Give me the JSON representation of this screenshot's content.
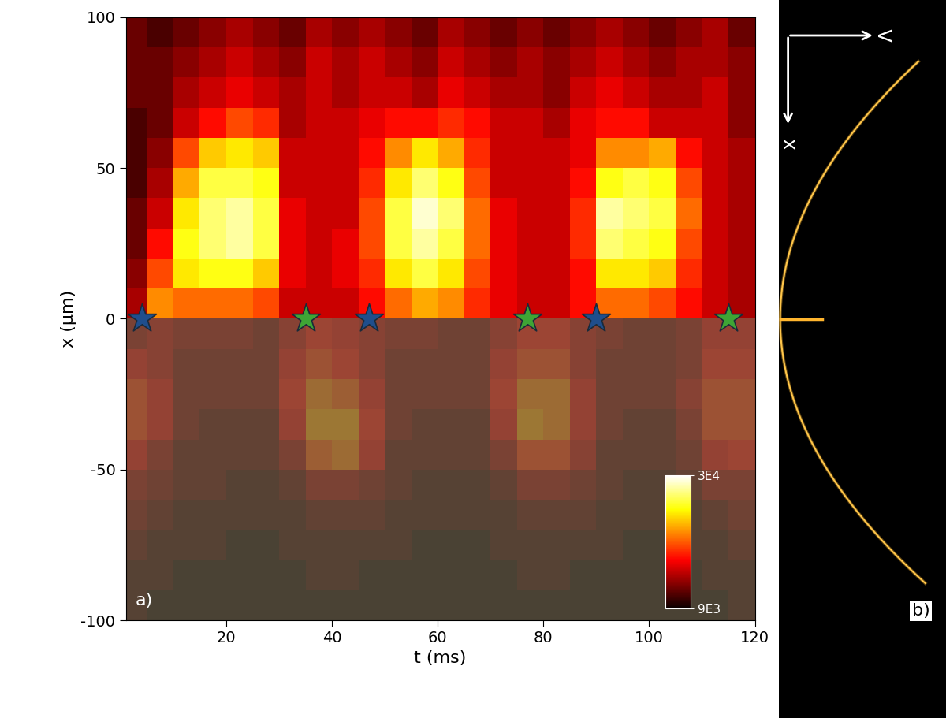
{
  "chart_data": {
    "type": "heatmap",
    "panel_label": "a)",
    "x_label": "t (ms)",
    "y_label": "x (µm)",
    "xlim": [
      1,
      120
    ],
    "ylim": [
      -100,
      100
    ],
    "xticks": [
      20,
      40,
      60,
      80,
      100,
      120
    ],
    "yticks": [
      -100,
      -50,
      0,
      50,
      100
    ],
    "t_edges": [
      0,
      5,
      10,
      15,
      20,
      25,
      30,
      35,
      40,
      45,
      50,
      55,
      60,
      65,
      70,
      75,
      80,
      85,
      90,
      95,
      100,
      105,
      110,
      115,
      120
    ],
    "x_edges": [
      -100,
      -90,
      -80,
      -70,
      -60,
      -50,
      -40,
      -30,
      -20,
      -10,
      0,
      10,
      20,
      30,
      40,
      50,
      60,
      70,
      80,
      90,
      100
    ],
    "cells": [
      [
        11000,
        10000,
        10000,
        10000,
        10000,
        10000,
        10000,
        10000,
        10000,
        10000,
        10000,
        10000,
        10000,
        10000,
        10000,
        10000,
        10000,
        10000,
        10000,
        10000,
        10000,
        10000,
        10000,
        11000
      ],
      [
        11000,
        11000,
        10000,
        10000,
        10000,
        10000,
        10000,
        11000,
        11000,
        10000,
        10000,
        10000,
        10000,
        10000,
        10000,
        11000,
        11000,
        10000,
        10000,
        10000,
        10000,
        10000,
        11000,
        11000
      ],
      [
        12000,
        11000,
        11000,
        11000,
        10000,
        10000,
        11000,
        11000,
        11000,
        11000,
        11000,
        10000,
        10000,
        10000,
        11000,
        11000,
        11000,
        11000,
        11000,
        10000,
        10000,
        11000,
        11000,
        12000
      ],
      [
        13000,
        12000,
        11000,
        11000,
        11000,
        11000,
        11000,
        12000,
        12000,
        12000,
        11000,
        11000,
        11000,
        11000,
        11000,
        12000,
        12000,
        12000,
        11000,
        11000,
        11000,
        11000,
        12000,
        13000
      ],
      [
        14000,
        13000,
        12000,
        12000,
        11000,
        11000,
        12000,
        14000,
        14000,
        13000,
        12000,
        11000,
        11000,
        11000,
        12000,
        14000,
        14000,
        13000,
        12000,
        11000,
        11000,
        12000,
        14000,
        14000
      ],
      [
        16000,
        14000,
        12000,
        12000,
        12000,
        12000,
        14000,
        19000,
        20000,
        16000,
        12000,
        12000,
        12000,
        12000,
        14000,
        18000,
        18000,
        15000,
        12000,
        12000,
        12000,
        13000,
        16000,
        17000
      ],
      [
        18000,
        16000,
        13000,
        12000,
        12000,
        12000,
        16000,
        21000,
        21000,
        17000,
        13000,
        12000,
        12000,
        12000,
        16000,
        21000,
        20000,
        16000,
        13000,
        12000,
        12000,
        14000,
        18000,
        18000
      ],
      [
        18000,
        16000,
        13000,
        13000,
        13000,
        13000,
        17000,
        20000,
        19000,
        16000,
        13000,
        13000,
        13000,
        13000,
        17000,
        20000,
        20000,
        16000,
        13000,
        13000,
        13000,
        15000,
        18000,
        18000
      ],
      [
        16000,
        15000,
        13000,
        13000,
        13000,
        13000,
        16000,
        18000,
        17000,
        15000,
        13000,
        13000,
        13000,
        13000,
        16000,
        18000,
        18000,
        15000,
        13000,
        13000,
        13000,
        14000,
        17000,
        17000
      ],
      [
        14000,
        15000,
        14000,
        14000,
        14000,
        13000,
        15000,
        17000,
        16000,
        15000,
        14000,
        14000,
        13000,
        13000,
        15000,
        17000,
        17000,
        15000,
        14000,
        13000,
        13000,
        14000,
        16000,
        16000
      ],
      [
        14000,
        21000,
        20000,
        20000,
        20000,
        19000,
        15000,
        15000,
        15000,
        17000,
        20000,
        22000,
        21000,
        18000,
        16000,
        15000,
        15000,
        17000,
        20000,
        20000,
        19000,
        17000,
        15000,
        14000
      ],
      [
        13000,
        19000,
        24000,
        25000,
        25000,
        23000,
        16000,
        15000,
        16000,
        18000,
        24000,
        26000,
        24000,
        19000,
        16000,
        15000,
        15000,
        17000,
        24000,
        24000,
        23000,
        18000,
        15000,
        14000
      ],
      [
        12000,
        17000,
        25000,
        27000,
        28000,
        26000,
        16000,
        15000,
        16000,
        19000,
        26000,
        28000,
        26000,
        20000,
        16000,
        15000,
        15000,
        18000,
        27000,
        26000,
        25000,
        19000,
        15000,
        14000
      ],
      [
        12000,
        15000,
        24000,
        27000,
        28000,
        26000,
        16000,
        15000,
        15000,
        19000,
        26000,
        29000,
        27000,
        20000,
        16000,
        15000,
        15000,
        18000,
        28000,
        27000,
        26000,
        20000,
        15000,
        14000
      ],
      [
        11000,
        14000,
        22000,
        26000,
        26000,
        25000,
        15000,
        15000,
        15000,
        18000,
        24000,
        27000,
        25000,
        19000,
        15000,
        15000,
        15000,
        17000,
        25000,
        26000,
        25000,
        19000,
        15000,
        14000
      ],
      [
        11000,
        13000,
        19000,
        23000,
        24000,
        23000,
        15000,
        15000,
        15000,
        17000,
        21000,
        24000,
        22000,
        18000,
        15000,
        15000,
        15000,
        16000,
        21000,
        21000,
        22000,
        17000,
        15000,
        14000
      ],
      [
        11000,
        12000,
        15000,
        17000,
        19000,
        18000,
        14000,
        15000,
        15000,
        16000,
        17000,
        17000,
        18000,
        17000,
        15000,
        15000,
        14000,
        16000,
        17000,
        17000,
        15000,
        15000,
        15000,
        13000
      ],
      [
        12000,
        12000,
        14000,
        15000,
        16000,
        15000,
        14000,
        15000,
        14000,
        15000,
        15000,
        14000,
        16000,
        15000,
        14000,
        14000,
        13000,
        15000,
        16000,
        15000,
        14000,
        14000,
        15000,
        13000
      ],
      [
        12000,
        12000,
        13000,
        14000,
        15000,
        14000,
        13000,
        15000,
        14000,
        15000,
        14000,
        13000,
        15000,
        14000,
        13000,
        14000,
        13000,
        14000,
        15000,
        14000,
        13000,
        14000,
        14000,
        13000
      ],
      [
        12000,
        11000,
        12000,
        13000,
        14000,
        13000,
        12000,
        14000,
        13000,
        14000,
        13000,
        12000,
        14000,
        13000,
        12000,
        13000,
        12000,
        13000,
        14000,
        13000,
        12000,
        13000,
        14000,
        12000
      ]
    ],
    "colorbar": {
      "range": [
        9000,
        30000
      ],
      "ticks": [
        {
          "value": 9000,
          "label": "9E3"
        },
        {
          "value": 30000,
          "label": "3E4"
        }
      ]
    },
    "series": [
      {
        "color": "#1f4e8c",
        "marker": "star",
        "t": [
          4,
          47,
          90
        ],
        "x": [
          0,
          0,
          0
        ]
      },
      {
        "color": "#3ea535",
        "marker": "star",
        "t": [
          35,
          77,
          115
        ],
        "x": [
          0,
          0,
          0
        ]
      }
    ]
  },
  "image_panel": {
    "panel_label": "b)",
    "arrow_labels": [
      "V",
      "x"
    ]
  }
}
